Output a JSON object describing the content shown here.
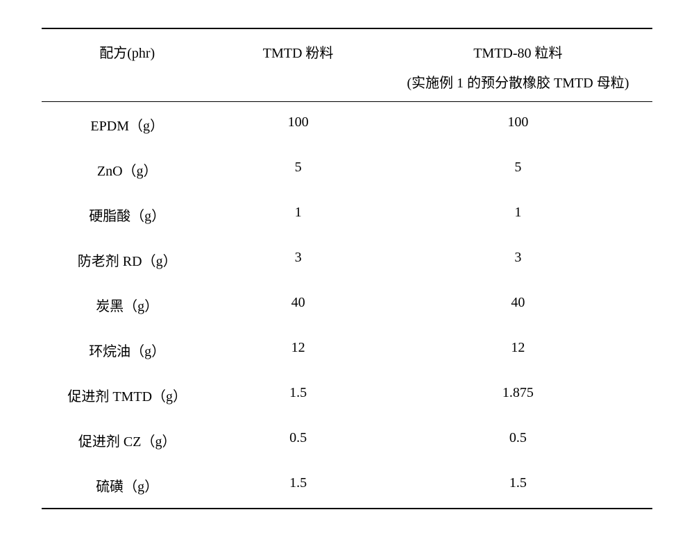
{
  "table": {
    "columns": [
      {
        "header": "配方(phr)",
        "sub": ""
      },
      {
        "header": "TMTD 粉料",
        "sub": ""
      },
      {
        "header": "TMTD-80 粒料",
        "sub": "(实施例 1 的预分散橡胶 TMTD 母粒)"
      }
    ],
    "rows": [
      {
        "label": "EPDM（g）",
        "v1": "100",
        "v2": "100"
      },
      {
        "label": "ZnO（g）",
        "v1": "5",
        "v2": "5"
      },
      {
        "label": "硬脂酸（g）",
        "v1": "1",
        "v2": "1"
      },
      {
        "label": "防老剂 RD（g）",
        "v1": "3",
        "v2": "3"
      },
      {
        "label": "炭黑（g）",
        "v1": "40",
        "v2": "40"
      },
      {
        "label": "环烷油（g）",
        "v1": "12",
        "v2": "12"
      },
      {
        "label": "促进剂 TMTD（g）",
        "v1": "1.5",
        "v2": "1.875"
      },
      {
        "label": "促进剂 CZ（g）",
        "v1": "0.5",
        "v2": "0.5"
      },
      {
        "label": "硫磺（g）",
        "v1": "1.5",
        "v2": "1.5"
      }
    ],
    "font_size": 20,
    "text_color": "#000000",
    "border_color": "#000000",
    "background_color": "#ffffff"
  }
}
